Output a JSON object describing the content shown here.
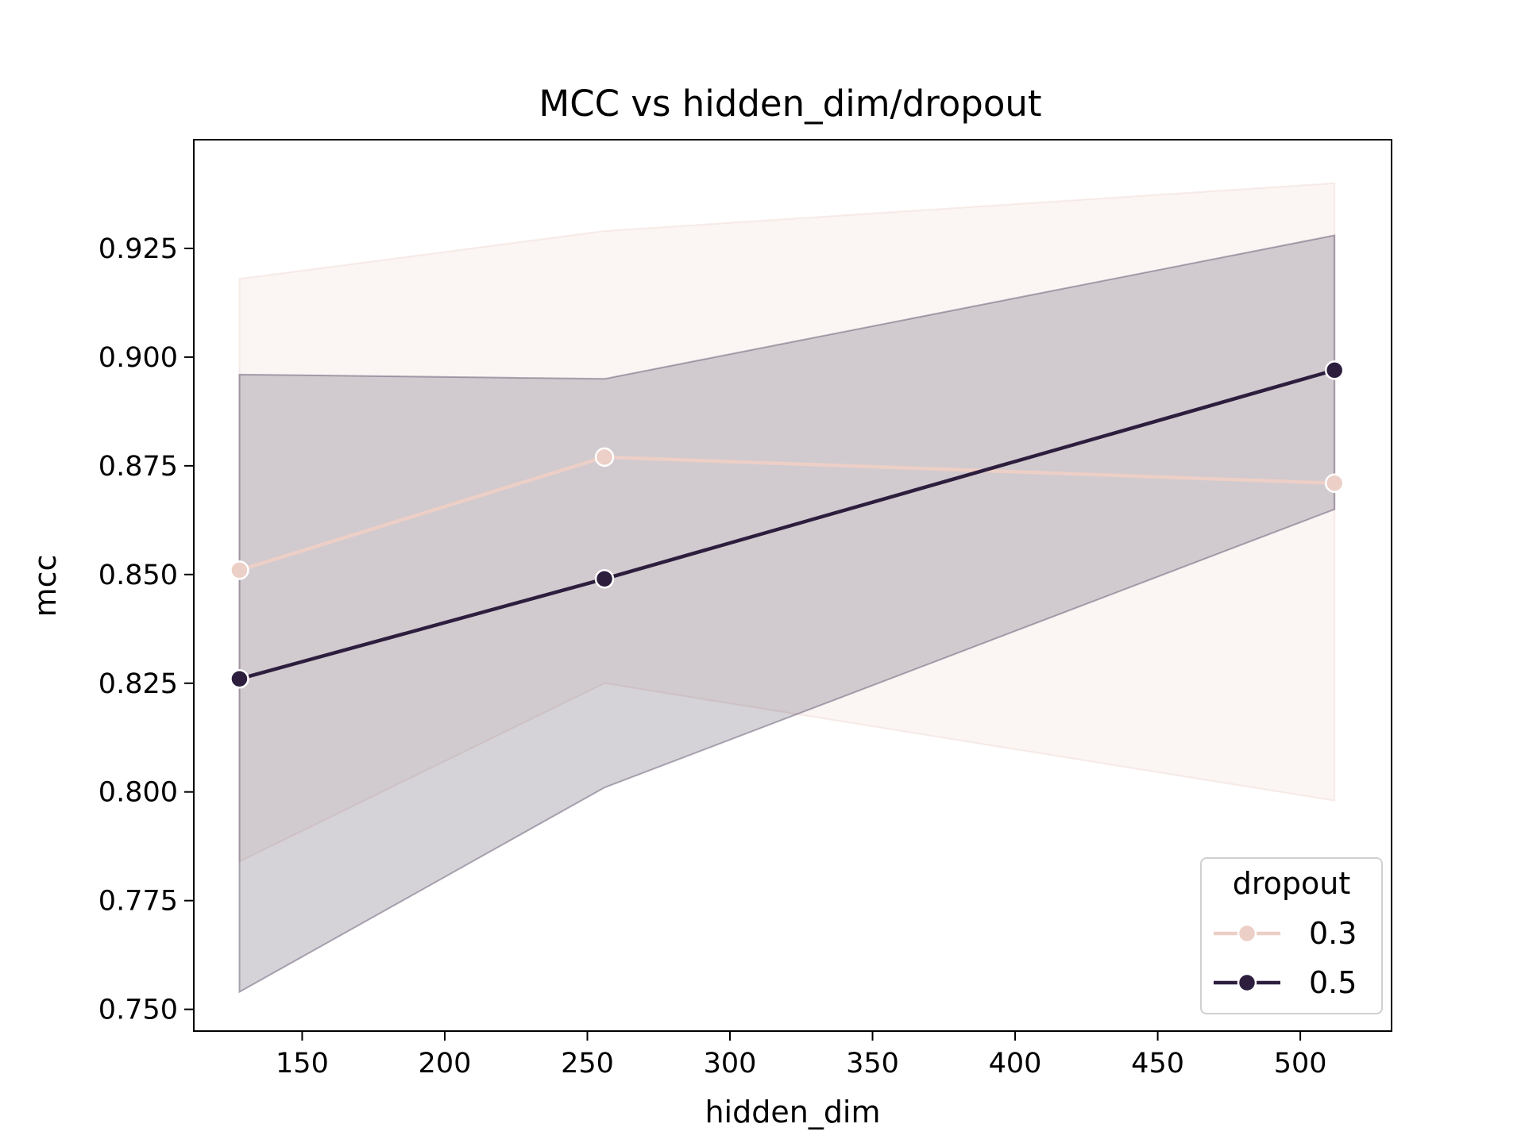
{
  "chart_data": {
    "type": "line",
    "title": "MCC vs hidden_dim/dropout",
    "xlabel": "hidden_dim",
    "ylabel": "mcc",
    "xlim": [
      112,
      532
    ],
    "ylim": [
      0.745,
      0.95
    ],
    "xticks": [
      150,
      200,
      250,
      300,
      350,
      400,
      450,
      500
    ],
    "yticks": [
      0.75,
      0.775,
      0.8,
      0.825,
      0.85,
      0.875,
      0.9,
      0.925
    ],
    "xtick_labels": [
      "150",
      "200",
      "250",
      "300",
      "350",
      "400",
      "450",
      "500"
    ],
    "ytick_labels": [
      "0.750",
      "0.775",
      "0.800",
      "0.825",
      "0.850",
      "0.875",
      "0.900",
      "0.925"
    ],
    "grid": false,
    "legend": {
      "title": "dropout",
      "placement": "lower-right"
    },
    "x": [
      128,
      256,
      512
    ],
    "series": [
      {
        "name": "0.3",
        "color": "#eccfc6",
        "values": [
          0.851,
          0.877,
          0.871
        ],
        "ci_lower": [
          0.784,
          0.825,
          0.798
        ],
        "ci_upper": [
          0.918,
          0.929,
          0.94
        ]
      },
      {
        "name": "0.5",
        "color": "#2d1e3e",
        "values": [
          0.826,
          0.849,
          0.897
        ],
        "ci_lower": [
          0.754,
          0.801,
          0.865
        ],
        "ci_upper": [
          0.896,
          0.895,
          0.928
        ]
      }
    ]
  }
}
